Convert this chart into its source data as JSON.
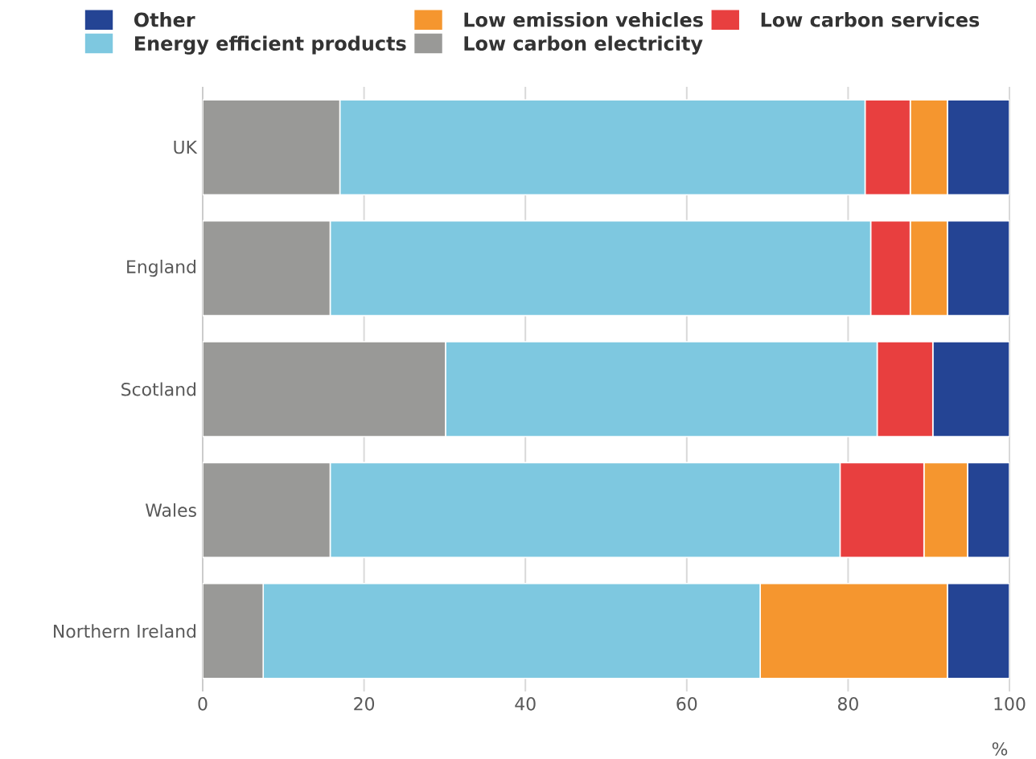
{
  "chart_data": {
    "type": "bar",
    "orientation": "horizontal",
    "stacked": true,
    "xlabel": "%",
    "categories": [
      "UK",
      "England",
      "Scotland",
      "Wales",
      "Northern Ireland"
    ],
    "series": [
      {
        "name": "Low carbon electricity",
        "color": "#999997",
        "values": [
          17,
          15.8,
          30.1,
          15.8,
          7.5
        ]
      },
      {
        "name": "Energy efficient products",
        "color": "#7ec8e0",
        "values": [
          65.1,
          67.0,
          53.5,
          63.2,
          61.6
        ]
      },
      {
        "name": "Low carbon services",
        "color": "#e83f3f",
        "values": [
          5.6,
          4.9,
          6.9,
          10.4,
          0
        ]
      },
      {
        "name": "Low emission vehicles",
        "color": "#f5962f",
        "values": [
          4.6,
          4.6,
          0,
          5.4,
          23.2
        ]
      },
      {
        "name": "Other",
        "color": "#244494",
        "values": [
          7.7,
          7.7,
          9.5,
          5.2,
          7.7
        ]
      }
    ],
    "xlim": [
      0,
      100
    ],
    "xticks": [
      0,
      20,
      40,
      60,
      80,
      100
    ],
    "grid": "x",
    "legend": "top"
  }
}
